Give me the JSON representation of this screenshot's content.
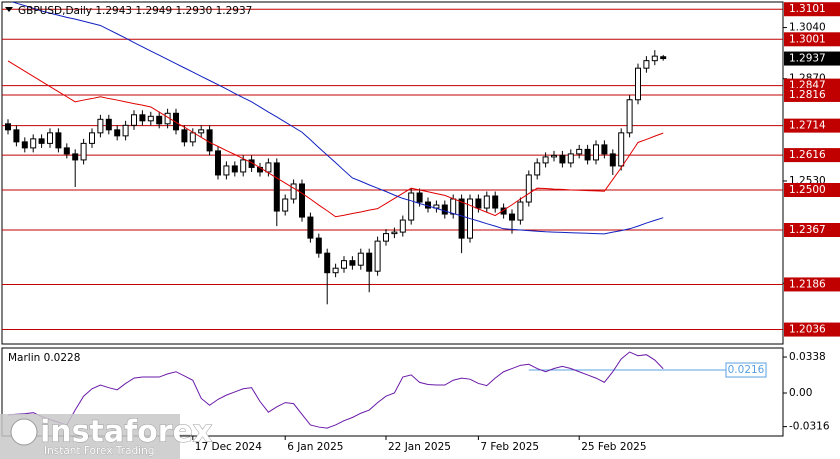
{
  "chart_data": [
    {
      "type": "candlestick",
      "title": "GBPUSD,Daily  1.2943 1.2949 1.2930 1.2937",
      "categories": [
        null,
        null,
        null,
        null,
        null,
        null,
        null,
        null,
        null,
        null,
        null,
        null,
        null,
        null,
        null,
        null,
        null,
        null,
        null,
        null,
        null,
        null,
        "17 Dec 2024",
        null,
        null,
        null,
        null,
        null,
        null,
        null,
        null,
        null,
        null,
        "6 Jan 2025",
        null,
        null,
        null,
        null,
        null,
        null,
        null,
        null,
        null,
        null,
        null,
        "22 Jan 2025",
        null,
        null,
        null,
        null,
        null,
        null,
        null,
        null,
        null,
        null,
        "7 Feb 2025",
        null,
        null,
        null,
        null,
        null,
        null,
        null,
        null,
        null,
        null,
        null,
        "25 Feb 2025",
        null,
        null,
        null,
        null,
        null,
        null,
        null,
        null,
        null,
        null
      ],
      "open": [
        1.272,
        1.27,
        1.266,
        1.264,
        1.267,
        1.2655,
        1.269,
        1.264,
        1.262,
        1.26,
        1.2655,
        1.269,
        1.2735,
        1.27,
        1.268,
        1.2715,
        1.275,
        1.273,
        1.2745,
        1.272,
        1.2755,
        1.27,
        1.266,
        1.269,
        1.27,
        1.263,
        1.255,
        1.258,
        1.256,
        1.26,
        1.2575,
        1.256,
        1.259,
        1.243,
        1.247,
        1.252,
        1.241,
        1.234,
        1.229,
        1.2225,
        1.224,
        1.2265,
        1.225,
        1.229,
        1.223,
        1.233,
        1.2355,
        1.236,
        1.24,
        1.249,
        1.246,
        1.244,
        1.245,
        1.242,
        1.247,
        1.234,
        1.247,
        1.244,
        1.248,
        1.244,
        1.242,
        1.24,
        1.246,
        1.255,
        1.259,
        1.261,
        1.2615,
        1.259,
        1.262,
        1.2635,
        1.26,
        1.265,
        1.262,
        1.258,
        1.269,
        1.28,
        1.2905,
        1.293,
        1.2943
      ],
      "high": [
        1.2735,
        1.2715,
        1.2675,
        1.2685,
        1.2685,
        1.2705,
        1.2705,
        1.2655,
        1.2635,
        1.267,
        1.2705,
        1.275,
        1.275,
        1.2715,
        1.273,
        1.2765,
        1.2765,
        1.276,
        1.276,
        1.277,
        1.277,
        1.2715,
        1.2705,
        1.2715,
        1.2715,
        1.2645,
        1.2595,
        1.2595,
        1.2615,
        1.2615,
        1.259,
        1.2605,
        1.2605,
        1.2485,
        1.2535,
        1.2535,
        1.2425,
        1.2355,
        1.2305,
        1.2255,
        1.228,
        1.228,
        1.2305,
        1.2305,
        1.2345,
        1.237,
        1.2375,
        1.2415,
        1.2505,
        1.2505,
        1.2475,
        1.2465,
        1.2465,
        1.2485,
        1.2485,
        1.2485,
        1.2485,
        1.2495,
        1.2495,
        1.2455,
        1.2435,
        1.2475,
        1.2565,
        1.2605,
        1.2625,
        1.263,
        1.263,
        1.2635,
        1.265,
        1.265,
        1.2665,
        1.2665,
        1.2635,
        1.2705,
        1.2815,
        1.292,
        1.2945,
        1.2965,
        1.2949
      ],
      "low": [
        1.2685,
        1.2645,
        1.2625,
        1.2625,
        1.264,
        1.264,
        1.2625,
        1.2605,
        1.251,
        1.2585,
        1.264,
        1.2675,
        1.2685,
        1.2665,
        1.2665,
        1.27,
        1.2715,
        1.2715,
        1.2705,
        1.2705,
        1.2685,
        1.2645,
        1.2645,
        1.2675,
        1.2615,
        1.2535,
        1.2535,
        1.2545,
        1.2545,
        1.256,
        1.2545,
        1.2545,
        1.238,
        1.2415,
        1.2455,
        1.2395,
        1.2325,
        1.2275,
        1.212,
        1.221,
        1.2225,
        1.2235,
        1.2235,
        1.216,
        1.2215,
        1.2315,
        1.234,
        1.2345,
        1.2385,
        1.2445,
        1.2425,
        1.2425,
        1.2405,
        1.2405,
        1.229,
        1.2325,
        1.2425,
        1.2425,
        1.2425,
        1.2405,
        1.2355,
        1.2385,
        1.2445,
        1.2535,
        1.2575,
        1.2595,
        1.2575,
        1.2575,
        1.2605,
        1.2585,
        1.2585,
        1.2605,
        1.255,
        1.2565,
        1.2675,
        1.2785,
        1.289,
        1.2915,
        1.293
      ],
      "close": [
        1.27,
        1.266,
        1.264,
        1.267,
        1.2655,
        1.269,
        1.264,
        1.262,
        1.26,
        1.2655,
        1.269,
        1.2735,
        1.27,
        1.268,
        1.2715,
        1.275,
        1.273,
        1.2745,
        1.272,
        1.2755,
        1.27,
        1.266,
        1.269,
        1.27,
        1.263,
        1.255,
        1.258,
        1.256,
        1.26,
        1.2575,
        1.256,
        1.259,
        1.243,
        1.247,
        1.252,
        1.241,
        1.234,
        1.229,
        1.2225,
        1.224,
        1.2265,
        1.225,
        1.229,
        1.223,
        1.233,
        1.2355,
        1.236,
        1.24,
        1.249,
        1.246,
        1.244,
        1.245,
        1.242,
        1.247,
        1.234,
        1.247,
        1.244,
        1.248,
        1.244,
        1.242,
        1.24,
        1.246,
        1.255,
        1.259,
        1.261,
        1.2615,
        1.259,
        1.262,
        1.2635,
        1.26,
        1.265,
        1.262,
        1.258,
        1.269,
        1.28,
        1.2905,
        1.293,
        1.2945,
        1.2937
      ],
      "moving_averages": [
        {
          "color": "#e00000",
          "values": [
            1.2929,
            1.2912,
            1.2895,
            1.2878,
            1.2861,
            1.2844,
            1.2827,
            1.281,
            1.2793,
            1.2799,
            1.2804,
            1.281,
            1.2804,
            1.2799,
            1.2793,
            1.2787,
            1.2782,
            1.2776,
            1.2759,
            1.2742,
            1.2725,
            1.2709,
            1.2692,
            1.2675,
            1.2658,
            1.2645,
            1.2631,
            1.2618,
            1.2604,
            1.2591,
            1.2574,
            1.2557,
            1.254,
            1.2523,
            1.2506,
            1.2489,
            1.247,
            1.245,
            1.2431,
            1.2411,
            1.2416,
            1.2422,
            1.2427,
            1.2433,
            1.2438,
            1.2455,
            1.2472,
            1.2489,
            1.2506,
            1.25,
            1.2494,
            1.2488,
            1.2482,
            1.2471,
            1.246,
            1.2449,
            1.2437,
            1.2426,
            1.2415,
            1.2433,
            1.2451,
            1.247,
            1.2488,
            1.2506,
            1.2505,
            1.2503,
            1.2502,
            1.25,
            1.2499,
            1.2498,
            1.2497,
            1.2496,
            1.2535,
            1.2574,
            1.2616,
            1.2658,
            1.2668,
            1.2679,
            1.2689
          ]
        },
        {
          "color": "#1020c0",
          "values": [
            1.313,
            1.3121,
            1.3113,
            1.3104,
            1.3095,
            1.3088,
            1.3081,
            1.3074,
            1.3068,
            1.3061,
            1.3054,
            1.3047,
            1.3033,
            1.3019,
            1.3005,
            1.299,
            1.2976,
            1.2962,
            1.2948,
            1.2934,
            1.292,
            1.2906,
            1.2892,
            1.2878,
            1.2864,
            1.285,
            1.2836,
            1.2821,
            1.2807,
            1.2793,
            1.2776,
            1.2759,
            1.2743,
            1.2726,
            1.2709,
            1.2692,
            1.2667,
            1.2641,
            1.2616,
            1.2591,
            1.2565,
            1.254,
            1.2529,
            1.2517,
            1.2506,
            1.2495,
            1.2483,
            1.2472,
            1.2464,
            1.2455,
            1.2447,
            1.2439,
            1.243,
            1.2422,
            1.2414,
            1.2405,
            1.2397,
            1.2388,
            1.238,
            1.2371,
            1.2369,
            1.2367,
            1.2365,
            1.2363,
            1.2361,
            1.236,
            1.2359,
            1.2358,
            1.2357,
            1.2356,
            1.2355,
            1.2354,
            1.236,
            1.2365,
            1.2371,
            1.238,
            1.239,
            1.2399,
            1.2408
          ]
        }
      ],
      "levels": [
        1.3101,
        1.3001,
        1.2847,
        1.2816,
        1.2714,
        1.2616,
        {
          "value": 1.25,
          "label": "1.2500"
        },
        1.2367,
        1.2186,
        1.2036
      ],
      "level_color": "#c00000",
      "last_price": 1.2937,
      "ylim": [
        1.1988,
        1.3125
      ],
      "yticks": [
        {
          "value": 1.304,
          "label": "1.3040"
        },
        {
          "value": 1.287,
          "label": "1.2870"
        },
        {
          "value": 1.253,
          "label": "1.2530"
        },
        {
          "value": 1.219,
          "label": "1.2190"
        }
      ]
    },
    {
      "type": "line",
      "title": "Marlin 0.0228",
      "color": "#6a1aa8",
      "values": [
        -0.0205,
        -0.02,
        -0.0195,
        -0.0185,
        -0.022,
        -0.025,
        -0.0275,
        -0.03,
        -0.016,
        -0.003,
        0.004,
        0.0075,
        0.005,
        0.003,
        0.009,
        0.014,
        0.015,
        0.015,
        0.015,
        0.018,
        0.02,
        0.016,
        0.012,
        -0.005,
        -0.0115,
        -0.006,
        -0.002,
        0.001,
        0.004,
        0.005,
        -0.008,
        -0.018,
        -0.013,
        -0.009,
        -0.01,
        -0.02,
        -0.03,
        -0.032,
        -0.033,
        -0.03,
        -0.026,
        -0.023,
        -0.019,
        -0.016,
        -0.009,
        -0.003,
        0.0,
        0.015,
        0.017,
        0.01,
        0.008,
        0.0075,
        0.0075,
        0.012,
        0.014,
        0.013,
        0.009,
        0.007,
        0.014,
        0.02,
        0.023,
        0.026,
        0.027,
        0.023,
        0.02,
        0.023,
        0.025,
        0.023,
        0.02,
        0.017,
        0.014,
        0.01,
        0.02,
        0.032,
        0.0385,
        0.035,
        0.036,
        0.031,
        0.0228
      ],
      "level": 0.0216,
      "level_color": "#5aa0e0",
      "ylim": [
        -0.0404,
        0.0423
      ],
      "yticks": [
        0.0338,
        {
          "value": 0,
          "label": "0.00"
        },
        -0.0316
      ]
    }
  ],
  "watermark": {
    "brand": "instaforex",
    "tagline": "Instant Forex Trading"
  }
}
